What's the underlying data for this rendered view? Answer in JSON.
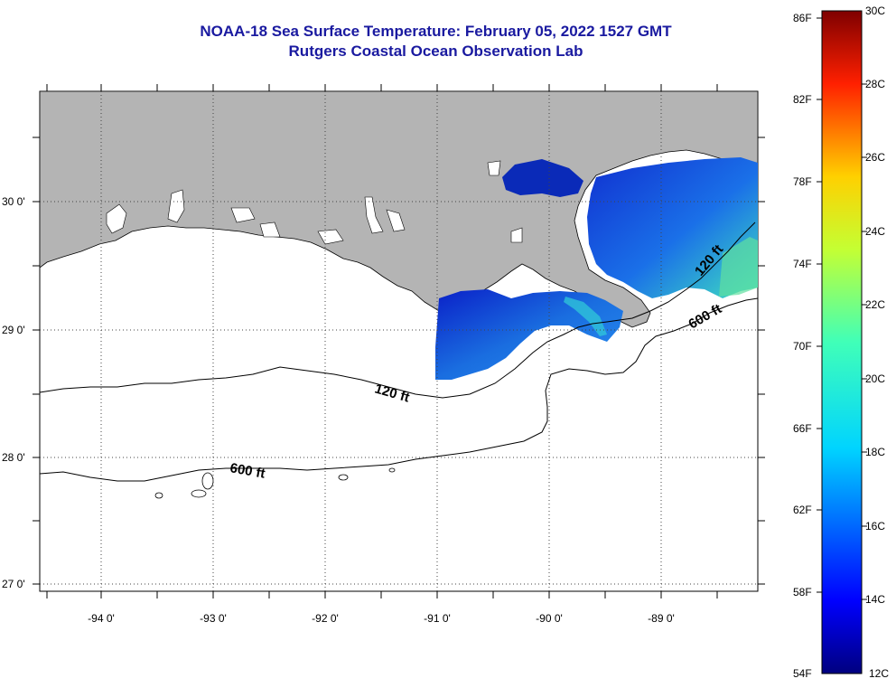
{
  "title": {
    "line1": "NOAA-18 Sea Surface Temperature:  February 05, 2022 1527 GMT",
    "line2": "Rutgers Coastal Ocean Observation Lab"
  },
  "map": {
    "lat_labels": [
      "30 0'",
      "29 0'",
      "28 0'",
      "27 0'"
    ],
    "lon_labels": [
      "-94 0'",
      "-93 0'",
      "-92 0'",
      "-91 0'",
      "-90 0'",
      "-89 0'"
    ],
    "contour_labels": [
      "120 ft",
      "600 ft",
      "600 ft",
      "120 ft"
    ],
    "land_color": "#b4b4b4",
    "grid_style": "dotted"
  },
  "colorbar": {
    "fahrenheit_labels": [
      "86F",
      "82F",
      "78F",
      "74F",
      "70F",
      "66F",
      "62F",
      "58F",
      "54F"
    ],
    "celsius_labels": [
      "30C",
      "28C",
      "26C",
      "24C",
      "22C",
      "20C",
      "18C",
      "16C",
      "14C",
      "12C"
    ],
    "colormap": "jet",
    "min_c": 12,
    "max_c": 30
  }
}
